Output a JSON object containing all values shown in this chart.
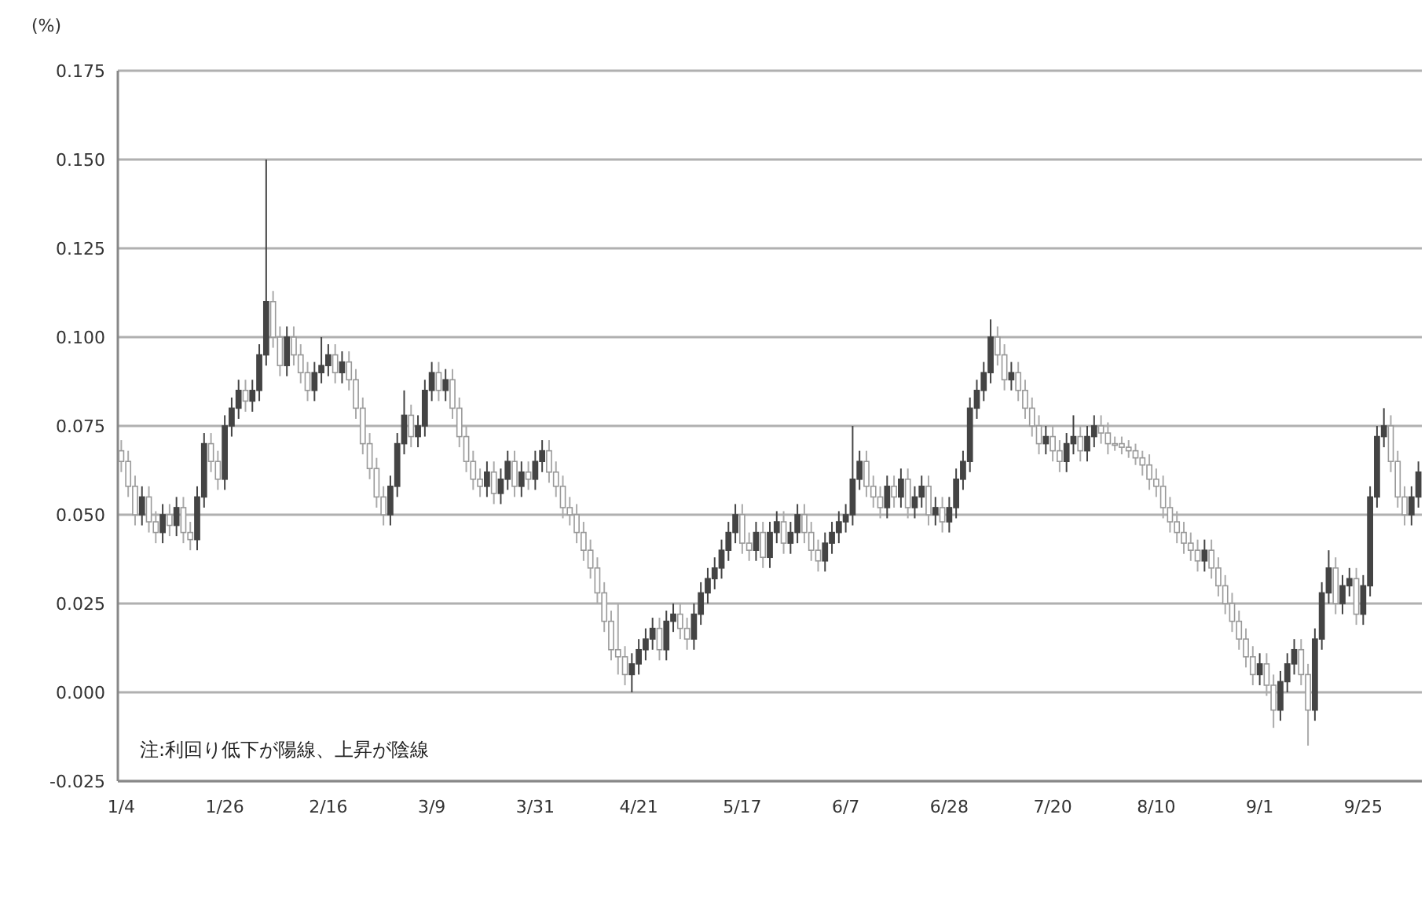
{
  "chart_data": {
    "type": "candlestick",
    "ylabel": "(%)",
    "annotations": [
      "注:利回り低下が陽線、上昇が陰線"
    ],
    "ylim": [
      -0.025,
      0.175
    ],
    "yticks": [
      {
        "value": -0.025,
        "label": "-0.025"
      },
      {
        "value": 0,
        "label": "0.000"
      },
      {
        "value": 0.025,
        "label": "0.025"
      },
      {
        "value": 0.05,
        "label": "0.050"
      },
      {
        "value": 0.075,
        "label": "0.075"
      },
      {
        "value": 0.1,
        "label": "0.100"
      },
      {
        "value": 0.125,
        "label": "0.125"
      },
      {
        "value": 0.15,
        "label": "0.150"
      },
      {
        "value": 0.175,
        "label": "0.175"
      }
    ],
    "grid": "y",
    "categories": [
      "1/4",
      null,
      null,
      null,
      null,
      null,
      null,
      null,
      null,
      null,
      null,
      null,
      null,
      null,
      null,
      "1/26",
      null,
      null,
      null,
      null,
      null,
      null,
      null,
      null,
      null,
      null,
      null,
      null,
      null,
      null,
      "2/16",
      null,
      null,
      null,
      null,
      null,
      null,
      null,
      null,
      null,
      null,
      null,
      null,
      null,
      null,
      "3/9",
      null,
      null,
      null,
      null,
      null,
      null,
      null,
      null,
      null,
      null,
      null,
      null,
      null,
      null,
      "3/31",
      null,
      null,
      null,
      null,
      null,
      null,
      null,
      null,
      null,
      null,
      null,
      null,
      null,
      null,
      "4/21",
      null,
      null,
      null,
      null,
      null,
      null,
      null,
      null,
      null,
      null,
      null,
      null,
      null,
      null,
      "5/17",
      null,
      null,
      null,
      null,
      null,
      null,
      null,
      null,
      null,
      null,
      null,
      null,
      null,
      null,
      "6/7",
      null,
      null,
      null,
      null,
      null,
      null,
      null,
      null,
      null,
      null,
      null,
      null,
      null,
      null,
      "6/28",
      null,
      null,
      null,
      null,
      null,
      null,
      null,
      null,
      null,
      null,
      null,
      null,
      null,
      null,
      "7/20",
      null,
      null,
      null,
      null,
      null,
      null,
      null,
      null,
      null,
      null,
      null,
      null,
      null,
      null,
      "8/10",
      null,
      null,
      null,
      null,
      null,
      null,
      null,
      null,
      null,
      null,
      null,
      null,
      null,
      null,
      "9/1",
      null,
      null,
      null,
      null,
      null,
      null,
      null,
      null,
      null,
      null,
      null,
      null,
      null,
      null,
      "9/25",
      null,
      null,
      null,
      null,
      null,
      null,
      null,
      null
    ],
    "ohlc": [
      [
        0.068,
        0.071,
        0.062,
        0.065
      ],
      [
        0.065,
        0.068,
        0.055,
        0.058
      ],
      [
        0.058,
        0.061,
        0.047,
        0.05
      ],
      [
        0.05,
        0.058,
        0.047,
        0.055
      ],
      [
        0.055,
        0.058,
        0.045,
        0.048
      ],
      [
        0.048,
        0.051,
        0.042,
        0.045
      ],
      [
        0.045,
        0.053,
        0.042,
        0.05
      ],
      [
        0.05,
        0.053,
        0.044,
        0.047
      ],
      [
        0.047,
        0.055,
        0.044,
        0.052
      ],
      [
        0.052,
        0.055,
        0.042,
        0.045
      ],
      [
        0.045,
        0.048,
        0.04,
        0.043
      ],
      [
        0.043,
        0.058,
        0.04,
        0.055
      ],
      [
        0.055,
        0.073,
        0.052,
        0.07
      ],
      [
        0.07,
        0.073,
        0.062,
        0.065
      ],
      [
        0.065,
        0.068,
        0.057,
        0.06
      ],
      [
        0.06,
        0.078,
        0.057,
        0.075
      ],
      [
        0.075,
        0.083,
        0.072,
        0.08
      ],
      [
        0.08,
        0.088,
        0.077,
        0.085
      ],
      [
        0.085,
        0.088,
        0.079,
        0.082
      ],
      [
        0.082,
        0.088,
        0.079,
        0.085
      ],
      [
        0.085,
        0.098,
        0.082,
        0.095
      ],
      [
        0.095,
        0.15,
        0.092,
        0.11
      ],
      [
        0.11,
        0.113,
        0.097,
        0.1
      ],
      [
        0.1,
        0.103,
        0.089,
        0.092
      ],
      [
        0.092,
        0.103,
        0.089,
        0.1
      ],
      [
        0.1,
        0.103,
        0.092,
        0.095
      ],
      [
        0.095,
        0.098,
        0.087,
        0.09
      ],
      [
        0.09,
        0.093,
        0.082,
        0.085
      ],
      [
        0.085,
        0.093,
        0.082,
        0.09
      ],
      [
        0.09,
        0.1,
        0.087,
        0.092
      ],
      [
        0.092,
        0.098,
        0.089,
        0.095
      ],
      [
        0.095,
        0.098,
        0.087,
        0.09
      ],
      [
        0.09,
        0.096,
        0.087,
        0.093
      ],
      [
        0.093,
        0.096,
        0.085,
        0.088
      ],
      [
        0.088,
        0.091,
        0.077,
        0.08
      ],
      [
        0.08,
        0.083,
        0.067,
        0.07
      ],
      [
        0.07,
        0.073,
        0.06,
        0.063
      ],
      [
        0.063,
        0.066,
        0.052,
        0.055
      ],
      [
        0.055,
        0.058,
        0.047,
        0.05
      ],
      [
        0.05,
        0.061,
        0.047,
        0.058
      ],
      [
        0.058,
        0.073,
        0.055,
        0.07
      ],
      [
        0.07,
        0.085,
        0.067,
        0.078
      ],
      [
        0.078,
        0.081,
        0.069,
        0.072
      ],
      [
        0.072,
        0.078,
        0.069,
        0.075
      ],
      [
        0.075,
        0.088,
        0.072,
        0.085
      ],
      [
        0.085,
        0.093,
        0.082,
        0.09
      ],
      [
        0.09,
        0.093,
        0.082,
        0.085
      ],
      [
        0.085,
        0.091,
        0.082,
        0.088
      ],
      [
        0.088,
        0.091,
        0.077,
        0.08
      ],
      [
        0.08,
        0.083,
        0.069,
        0.072
      ],
      [
        0.072,
        0.075,
        0.062,
        0.065
      ],
      [
        0.065,
        0.068,
        0.057,
        0.06
      ],
      [
        0.06,
        0.063,
        0.055,
        0.058
      ],
      [
        0.058,
        0.065,
        0.055,
        0.062
      ],
      [
        0.062,
        0.065,
        0.053,
        0.056
      ],
      [
        0.056,
        0.063,
        0.053,
        0.06
      ],
      [
        0.06,
        0.068,
        0.057,
        0.065
      ],
      [
        0.065,
        0.068,
        0.055,
        0.058
      ],
      [
        0.058,
        0.065,
        0.055,
        0.062
      ],
      [
        0.062,
        0.065,
        0.057,
        0.06
      ],
      [
        0.06,
        0.068,
        0.057,
        0.065
      ],
      [
        0.065,
        0.071,
        0.062,
        0.068
      ],
      [
        0.068,
        0.071,
        0.059,
        0.062
      ],
      [
        0.062,
        0.065,
        0.055,
        0.058
      ],
      [
        0.058,
        0.061,
        0.049,
        0.052
      ],
      [
        0.052,
        0.055,
        0.047,
        0.05
      ],
      [
        0.05,
        0.053,
        0.042,
        0.045
      ],
      [
        0.045,
        0.048,
        0.037,
        0.04
      ],
      [
        0.04,
        0.043,
        0.032,
        0.035
      ],
      [
        0.035,
        0.038,
        0.025,
        0.028
      ],
      [
        0.028,
        0.031,
        0.017,
        0.02
      ],
      [
        0.02,
        0.023,
        0.009,
        0.012
      ],
      [
        0.012,
        0.025,
        0.005,
        0.01
      ],
      [
        0.01,
        0.013,
        0.002,
        0.005
      ],
      [
        0.005,
        0.011,
        0.0,
        0.008
      ],
      [
        0.008,
        0.015,
        0.005,
        0.012
      ],
      [
        0.012,
        0.018,
        0.009,
        0.015
      ],
      [
        0.015,
        0.021,
        0.012,
        0.018
      ],
      [
        0.018,
        0.021,
        0.009,
        0.012
      ],
      [
        0.012,
        0.023,
        0.009,
        0.02
      ],
      [
        0.02,
        0.025,
        0.017,
        0.022
      ],
      [
        0.022,
        0.025,
        0.015,
        0.018
      ],
      [
        0.018,
        0.021,
        0.012,
        0.015
      ],
      [
        0.015,
        0.025,
        0.012,
        0.022
      ],
      [
        0.022,
        0.031,
        0.019,
        0.028
      ],
      [
        0.028,
        0.035,
        0.025,
        0.032
      ],
      [
        0.032,
        0.038,
        0.029,
        0.035
      ],
      [
        0.035,
        0.043,
        0.032,
        0.04
      ],
      [
        0.04,
        0.048,
        0.037,
        0.045
      ],
      [
        0.045,
        0.053,
        0.042,
        0.05
      ],
      [
        0.05,
        0.053,
        0.039,
        0.042
      ],
      [
        0.042,
        0.045,
        0.037,
        0.04
      ],
      [
        0.04,
        0.048,
        0.037,
        0.045
      ],
      [
        0.045,
        0.048,
        0.035,
        0.038
      ],
      [
        0.038,
        0.048,
        0.035,
        0.045
      ],
      [
        0.045,
        0.051,
        0.042,
        0.048
      ],
      [
        0.048,
        0.051,
        0.039,
        0.042
      ],
      [
        0.042,
        0.048,
        0.039,
        0.045
      ],
      [
        0.045,
        0.053,
        0.042,
        0.05
      ],
      [
        0.05,
        0.053,
        0.042,
        0.045
      ],
      [
        0.045,
        0.048,
        0.037,
        0.04
      ],
      [
        0.04,
        0.043,
        0.034,
        0.037
      ],
      [
        0.037,
        0.045,
        0.034,
        0.042
      ],
      [
        0.042,
        0.048,
        0.039,
        0.045
      ],
      [
        0.045,
        0.051,
        0.042,
        0.048
      ],
      [
        0.048,
        0.053,
        0.045,
        0.05
      ],
      [
        0.05,
        0.075,
        0.047,
        0.06
      ],
      [
        0.06,
        0.068,
        0.057,
        0.065
      ],
      [
        0.065,
        0.068,
        0.055,
        0.058
      ],
      [
        0.058,
        0.061,
        0.052,
        0.055
      ],
      [
        0.055,
        0.058,
        0.049,
        0.052
      ],
      [
        0.052,
        0.061,
        0.049,
        0.058
      ],
      [
        0.058,
        0.061,
        0.052,
        0.055
      ],
      [
        0.055,
        0.063,
        0.052,
        0.06
      ],
      [
        0.06,
        0.063,
        0.049,
        0.052
      ],
      [
        0.052,
        0.058,
        0.049,
        0.055
      ],
      [
        0.055,
        0.061,
        0.052,
        0.058
      ],
      [
        0.058,
        0.061,
        0.047,
        0.05
      ],
      [
        0.05,
        0.055,
        0.047,
        0.052
      ],
      [
        0.052,
        0.055,
        0.045,
        0.048
      ],
      [
        0.048,
        0.055,
        0.045,
        0.052
      ],
      [
        0.052,
        0.063,
        0.049,
        0.06
      ],
      [
        0.06,
        0.068,
        0.057,
        0.065
      ],
      [
        0.065,
        0.083,
        0.062,
        0.08
      ],
      [
        0.08,
        0.088,
        0.077,
        0.085
      ],
      [
        0.085,
        0.093,
        0.082,
        0.09
      ],
      [
        0.09,
        0.105,
        0.087,
        0.1
      ],
      [
        0.1,
        0.103,
        0.092,
        0.095
      ],
      [
        0.095,
        0.098,
        0.085,
        0.088
      ],
      [
        0.088,
        0.093,
        0.085,
        0.09
      ],
      [
        0.09,
        0.093,
        0.082,
        0.085
      ],
      [
        0.085,
        0.088,
        0.077,
        0.08
      ],
      [
        0.08,
        0.083,
        0.072,
        0.075
      ],
      [
        0.075,
        0.078,
        0.067,
        0.07
      ],
      [
        0.07,
        0.075,
        0.067,
        0.072
      ],
      [
        0.072,
        0.075,
        0.065,
        0.068
      ],
      [
        0.068,
        0.071,
        0.062,
        0.065
      ],
      [
        0.065,
        0.073,
        0.062,
        0.07
      ],
      [
        0.07,
        0.078,
        0.067,
        0.072
      ],
      [
        0.072,
        0.075,
        0.065,
        0.068
      ],
      [
        0.068,
        0.075,
        0.065,
        0.072
      ],
      [
        0.072,
        0.078,
        0.069,
        0.075
      ],
      [
        0.075,
        0.078,
        0.07,
        0.073
      ],
      [
        0.073,
        0.076,
        0.067,
        0.07
      ],
      [
        0.07,
        0.072,
        0.068,
        0.07
      ],
      [
        0.07,
        0.072,
        0.067,
        0.069
      ],
      [
        0.069,
        0.071,
        0.066,
        0.068
      ],
      [
        0.068,
        0.07,
        0.064,
        0.066
      ],
      [
        0.066,
        0.068,
        0.061,
        0.064
      ],
      [
        0.064,
        0.067,
        0.057,
        0.06
      ],
      [
        0.06,
        0.063,
        0.055,
        0.058
      ],
      [
        0.058,
        0.061,
        0.049,
        0.052
      ],
      [
        0.052,
        0.055,
        0.045,
        0.048
      ],
      [
        0.048,
        0.051,
        0.042,
        0.045
      ],
      [
        0.045,
        0.048,
        0.039,
        0.042
      ],
      [
        0.042,
        0.045,
        0.037,
        0.04
      ],
      [
        0.04,
        0.043,
        0.034,
        0.037
      ],
      [
        0.037,
        0.043,
        0.034,
        0.04
      ],
      [
        0.04,
        0.043,
        0.032,
        0.035
      ],
      [
        0.035,
        0.038,
        0.027,
        0.03
      ],
      [
        0.03,
        0.033,
        0.022,
        0.025
      ],
      [
        0.025,
        0.028,
        0.017,
        0.02
      ],
      [
        0.02,
        0.023,
        0.012,
        0.015
      ],
      [
        0.015,
        0.018,
        0.007,
        0.01
      ],
      [
        0.01,
        0.013,
        0.002,
        0.005
      ],
      [
        0.005,
        0.011,
        0.002,
        0.008
      ],
      [
        0.008,
        0.011,
        -0.001,
        0.002
      ],
      [
        0.002,
        0.005,
        -0.01,
        -0.005
      ],
      [
        -0.005,
        0.006,
        -0.008,
        0.003
      ],
      [
        0.003,
        0.011,
        0.0,
        0.008
      ],
      [
        0.008,
        0.015,
        0.005,
        0.012
      ],
      [
        0.012,
        0.015,
        0.002,
        0.005
      ],
      [
        0.005,
        0.008,
        -0.015,
        -0.005
      ],
      [
        -0.005,
        0.018,
        -0.008,
        0.015
      ],
      [
        0.015,
        0.031,
        0.012,
        0.028
      ],
      [
        0.028,
        0.04,
        0.025,
        0.035
      ],
      [
        0.035,
        0.038,
        0.022,
        0.025
      ],
      [
        0.025,
        0.033,
        0.022,
        0.03
      ],
      [
        0.03,
        0.035,
        0.027,
        0.032
      ],
      [
        0.032,
        0.035,
        0.019,
        0.022
      ],
      [
        0.022,
        0.033,
        0.019,
        0.03
      ],
      [
        0.03,
        0.058,
        0.027,
        0.055
      ],
      [
        0.055,
        0.075,
        0.052,
        0.072
      ],
      [
        0.072,
        0.08,
        0.069,
        0.075
      ],
      [
        0.075,
        0.078,
        0.062,
        0.065
      ],
      [
        0.065,
        0.068,
        0.052,
        0.055
      ],
      [
        0.055,
        0.058,
        0.047,
        0.05
      ],
      [
        0.05,
        0.058,
        0.047,
        0.055
      ],
      [
        0.055,
        0.065,
        0.052,
        0.062
      ]
    ]
  }
}
